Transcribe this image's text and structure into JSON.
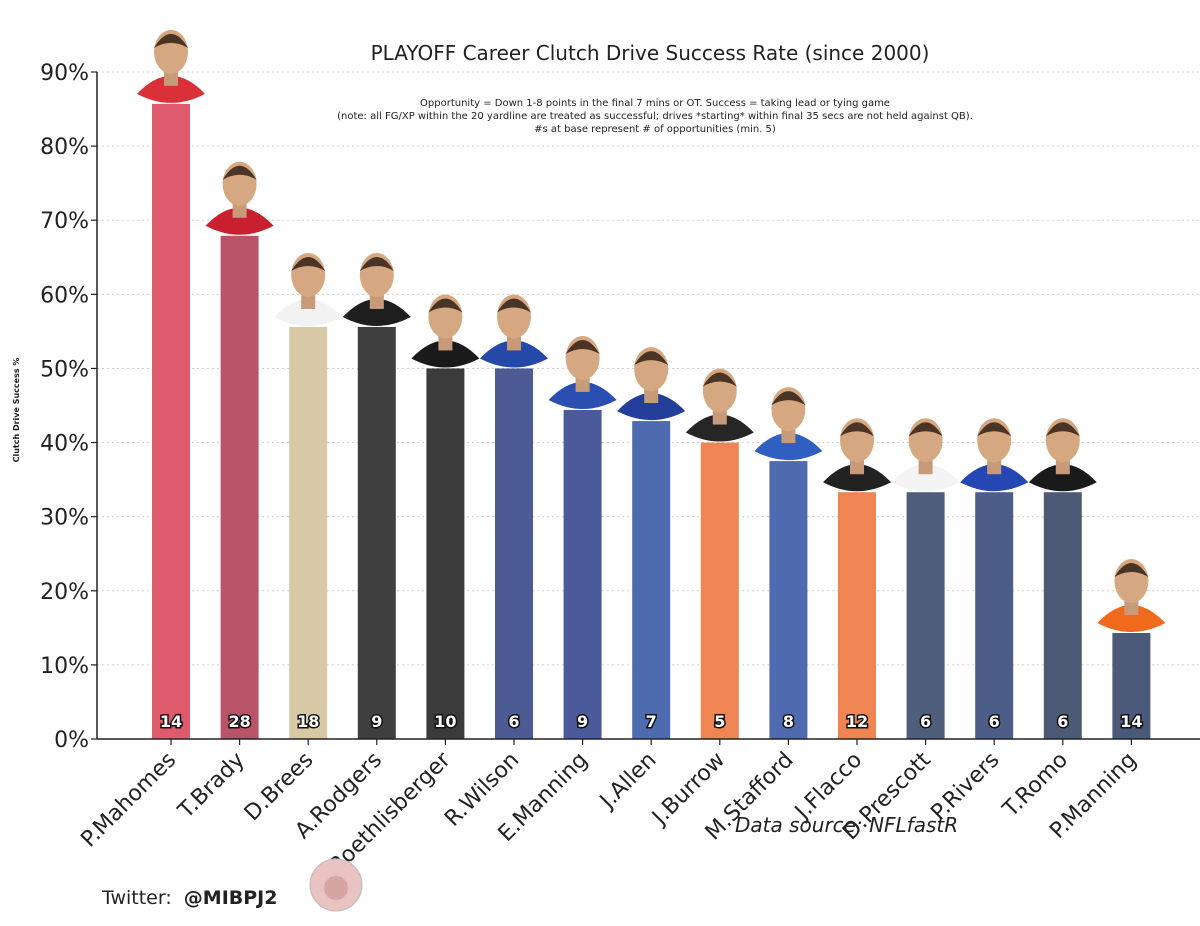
{
  "chart_data": {
    "type": "bar",
    "title": "PLAYOFF Career Clutch Drive Success Rate (since 2000)",
    "notes": [
      "Opportunity = Down 1-8 points in the final 7 mins or OT. Success = taking lead or tying game",
      "(note: all FG/XP within the 20 yardline are treated as successful; drives *starting* within final 35 secs are not held against QB).",
      "#s at base represent # of opportunities (min. 5)"
    ],
    "ylabel": "Clutch Drive Success %",
    "xlabel": "",
    "ylim": [
      0,
      90
    ],
    "yticks": [
      "0%",
      "10%",
      "20%",
      "30%",
      "40%",
      "50%",
      "60%",
      "70%",
      "80%",
      "90%"
    ],
    "categories": [
      "P.Mahomes",
      "T.Brady",
      "D.Brees",
      "A.Rodgers",
      "B.Roethlisberger",
      "R.Wilson",
      "E.Manning",
      "J.Allen",
      "J.Burrow",
      "M.Stafford",
      "J.Flacco",
      "D.Prescott",
      "P.Rivers",
      "T.Romo",
      "P.Manning"
    ],
    "values": [
      85.7,
      67.9,
      55.6,
      55.6,
      50.0,
      50.0,
      44.4,
      42.9,
      40.0,
      37.5,
      33.3,
      33.3,
      33.3,
      33.3,
      14.3
    ],
    "opportunities": [
      "14",
      "28",
      "18",
      "9",
      "10",
      "6",
      "9",
      "7",
      "5",
      "8",
      "12",
      "6",
      "6",
      "6",
      "14"
    ],
    "colors": [
      "#e05a6e",
      "#b95468",
      "#d8c9a6",
      "#3f3f3f",
      "#3b3b3b",
      "#4d5b94",
      "#4b5a9a",
      "#4e6bb0",
      "#ee8552",
      "#4f6aae",
      "#ee8552",
      "#4f5e7a",
      "#4c5d88",
      "#4d5a75",
      "#4b5a79"
    ],
    "head_colors": [
      "#d9303a",
      "#c8202f",
      "#f2f2f2",
      "#1e1e1e",
      "#1a1a1a",
      "#2449a8",
      "#2a4fb0",
      "#243f9a",
      "#262626",
      "#2f5fbf",
      "#222222",
      "#f4f4f4",
      "#2646b4",
      "#1a1a1a",
      "#f06a1e"
    ],
    "source": "Data source: NFLfastR",
    "twitter_label": "Twitter:",
    "twitter_handle": "@MIBPJ2"
  }
}
